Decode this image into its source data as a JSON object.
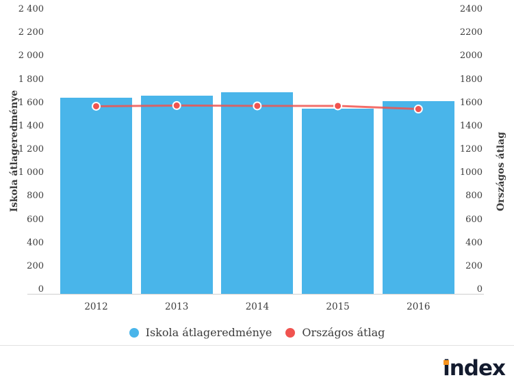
{
  "chart_data": {
    "type": "bar",
    "categories": [
      "2012",
      "2013",
      "2014",
      "2015",
      "2016"
    ],
    "series": [
      {
        "name": "Iskola átlageredménye",
        "type": "bar",
        "color": "#49b5ea",
        "values": [
          1645,
          1665,
          1690,
          1550,
          1615
        ]
      },
      {
        "name": "Országos átlag",
        "type": "line",
        "color": "#f0534f",
        "values": [
          1572,
          1578,
          1575,
          1575,
          1548
        ]
      }
    ],
    "title": "",
    "xlabel": "",
    "ylabel_left": "Iskola átlageredménye",
    "ylabel_right": "Országos átlag",
    "ylim": [
      0,
      2400
    ],
    "tick_step": 200,
    "left_tick_labels": [
      "2 400",
      "2 200",
      "2 000",
      "1 800",
      "1 600",
      "1 400",
      "1 200",
      "1 000",
      "800",
      "600",
      "400",
      "200",
      "0"
    ],
    "right_tick_labels": [
      "2400",
      "2200",
      "2000",
      "1800",
      "1600",
      "1400",
      "1200",
      "1000",
      "800",
      "600",
      "400",
      "200",
      "0"
    ],
    "grid": false,
    "legend_position": "bottom"
  },
  "colors": {
    "bar_blue": "#49b5ea",
    "line_red": "#f0534f",
    "axis_line": "#cfcfcf",
    "divider": "#e2e2e2",
    "text": "#3b3b3b"
  },
  "footer": {
    "logo_text": "index",
    "logo_color": "#131b2e",
    "logo_dot_color": "#f7941e"
  }
}
